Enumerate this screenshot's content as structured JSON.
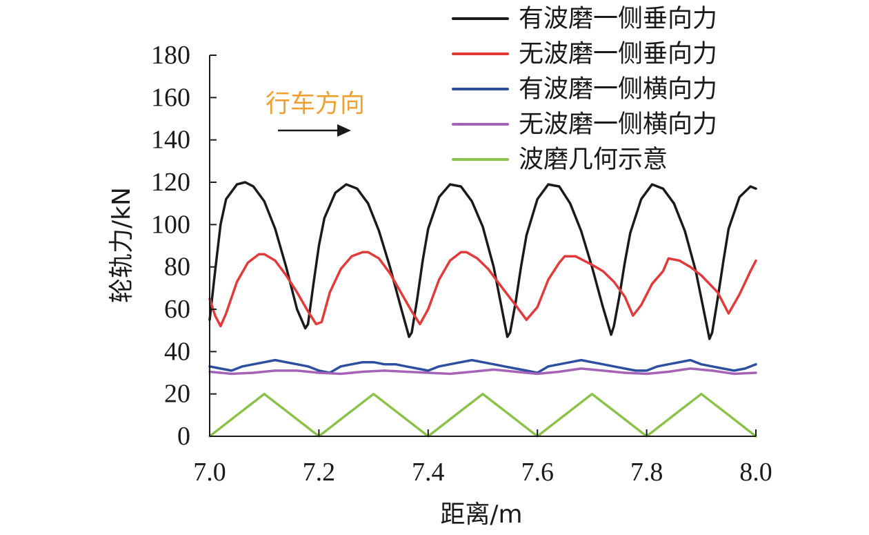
{
  "chart_data": {
    "type": "line",
    "title": "",
    "xlabel": "距离/m",
    "ylabel": "轮轨力/kN",
    "xlim": [
      7.0,
      8.0
    ],
    "ylim": [
      0,
      180
    ],
    "x_ticks": [
      "7.0",
      "7.2",
      "7.4",
      "7.6",
      "7.8",
      "8.0"
    ],
    "y_ticks": [
      "0",
      "20",
      "40",
      "60",
      "80",
      "100",
      "120",
      "140",
      "160",
      "180"
    ],
    "grid": false,
    "legend_position": "top-right",
    "annotation": {
      "text": "行车方向",
      "color": "#f0a030",
      "arrow": "right"
    },
    "series": [
      {
        "name": "有波磨一侧垂向力",
        "color": "#1a1a1a",
        "x": [
          7.0,
          7.01,
          7.02,
          7.03,
          7.05,
          7.065,
          7.08,
          7.1,
          7.12,
          7.14,
          7.16,
          7.175,
          7.18,
          7.19,
          7.2,
          7.21,
          7.23,
          7.25,
          7.27,
          7.29,
          7.31,
          7.33,
          7.35,
          7.365,
          7.37,
          7.38,
          7.39,
          7.4,
          7.42,
          7.44,
          7.46,
          7.48,
          7.5,
          7.52,
          7.545,
          7.55,
          7.56,
          7.57,
          7.58,
          7.6,
          7.62,
          7.64,
          7.66,
          7.68,
          7.7,
          7.72,
          7.735,
          7.74,
          7.75,
          7.76,
          7.77,
          7.79,
          7.81,
          7.83,
          7.85,
          7.87,
          7.89,
          7.915,
          7.92,
          7.93,
          7.94,
          7.95,
          7.97,
          7.99,
          8.0
        ],
        "values": [
          55,
          78,
          100,
          112,
          119,
          120,
          118,
          111,
          98,
          80,
          60,
          51,
          53,
          72,
          90,
          103,
          115,
          119,
          117,
          110,
          97,
          80,
          61,
          47,
          49,
          65,
          83,
          98,
          113,
          119,
          118,
          111,
          99,
          80,
          47,
          49,
          63,
          80,
          95,
          112,
          119,
          118,
          110,
          97,
          80,
          61,
          48,
          52,
          66,
          82,
          96,
          112,
          119,
          117,
          110,
          97,
          78,
          46,
          49,
          65,
          82,
          98,
          113,
          118,
          117
        ]
      },
      {
        "name": "无波磨一侧垂向力",
        "color": "#e23a3a",
        "x": [
          7.0,
          7.01,
          7.02,
          7.03,
          7.05,
          7.07,
          7.09,
          7.1,
          7.12,
          7.14,
          7.16,
          7.18,
          7.195,
          7.205,
          7.22,
          7.24,
          7.26,
          7.28,
          7.29,
          7.31,
          7.33,
          7.35,
          7.37,
          7.385,
          7.4,
          7.42,
          7.44,
          7.46,
          7.47,
          7.49,
          7.51,
          7.53,
          7.56,
          7.58,
          7.6,
          7.62,
          7.64,
          7.65,
          7.67,
          7.7,
          7.72,
          7.74,
          7.76,
          7.775,
          7.79,
          7.81,
          7.83,
          7.84,
          7.86,
          7.88,
          7.9,
          7.93,
          7.95,
          7.97,
          7.99,
          8.0
        ],
        "values": [
          65,
          57,
          52,
          58,
          73,
          82,
          86,
          86,
          83,
          76,
          68,
          59,
          53,
          54,
          68,
          79,
          85,
          87,
          87,
          84,
          77,
          68,
          59,
          53,
          60,
          74,
          83,
          87,
          87,
          84,
          79,
          72,
          62,
          55,
          61,
          74,
          82,
          85,
          85,
          81,
          78,
          73,
          66,
          57,
          62,
          72,
          78,
          84,
          83,
          80,
          76,
          68,
          58,
          67,
          78,
          83
        ]
      },
      {
        "name": "有波磨一侧横向力",
        "color": "#2c4fa0",
        "x": [
          7.0,
          7.02,
          7.04,
          7.06,
          7.08,
          7.1,
          7.12,
          7.14,
          7.16,
          7.18,
          7.2,
          7.22,
          7.24,
          7.26,
          7.28,
          7.3,
          7.32,
          7.34,
          7.36,
          7.38,
          7.4,
          7.42,
          7.44,
          7.46,
          7.48,
          7.5,
          7.52,
          7.54,
          7.56,
          7.58,
          7.6,
          7.62,
          7.64,
          7.66,
          7.68,
          7.7,
          7.72,
          7.74,
          7.76,
          7.78,
          7.8,
          7.82,
          7.84,
          7.86,
          7.88,
          7.9,
          7.92,
          7.94,
          7.96,
          7.98,
          8.0
        ],
        "values": [
          33,
          32,
          31,
          33,
          34,
          35,
          36,
          35,
          34,
          33,
          31,
          30,
          33,
          34,
          35,
          35,
          34,
          34,
          33,
          32,
          31,
          33,
          34,
          35,
          36,
          35,
          34,
          33,
          32,
          31,
          30,
          33,
          34,
          35,
          36,
          35,
          34,
          33,
          32,
          31,
          31,
          33,
          34,
          35,
          36,
          34,
          33,
          32,
          31,
          32,
          34
        ]
      },
      {
        "name": "无波磨一侧横向力",
        "color": "#a563b8",
        "x": [
          7.0,
          7.04,
          7.08,
          7.12,
          7.16,
          7.2,
          7.24,
          7.28,
          7.32,
          7.36,
          7.4,
          7.44,
          7.48,
          7.52,
          7.56,
          7.6,
          7.64,
          7.68,
          7.72,
          7.76,
          7.8,
          7.84,
          7.88,
          7.92,
          7.96,
          8.0
        ],
        "values": [
          30.5,
          29.5,
          30,
          31,
          31,
          30,
          29.5,
          30.5,
          31,
          30.5,
          30,
          29.5,
          30.5,
          31.5,
          30.5,
          29.5,
          30.5,
          32,
          31,
          30,
          29.5,
          30.5,
          32,
          31,
          29.5,
          30
        ]
      },
      {
        "name": "波磨几何示意",
        "color": "#8bc34a",
        "function": "10-10cos(2π(x-7.0)/0.2)",
        "x": [
          7.0,
          7.05,
          7.1,
          7.15,
          7.2,
          7.25,
          7.3,
          7.35,
          7.4,
          7.45,
          7.5,
          7.55,
          7.6,
          7.65,
          7.7,
          7.75,
          7.8,
          7.85,
          7.9,
          7.95,
          8.0
        ],
        "values": [
          0,
          10,
          20,
          10,
          0,
          10,
          20,
          10,
          0,
          10,
          20,
          10,
          0,
          10,
          20,
          10,
          0,
          10,
          20,
          10,
          0
        ]
      }
    ]
  }
}
